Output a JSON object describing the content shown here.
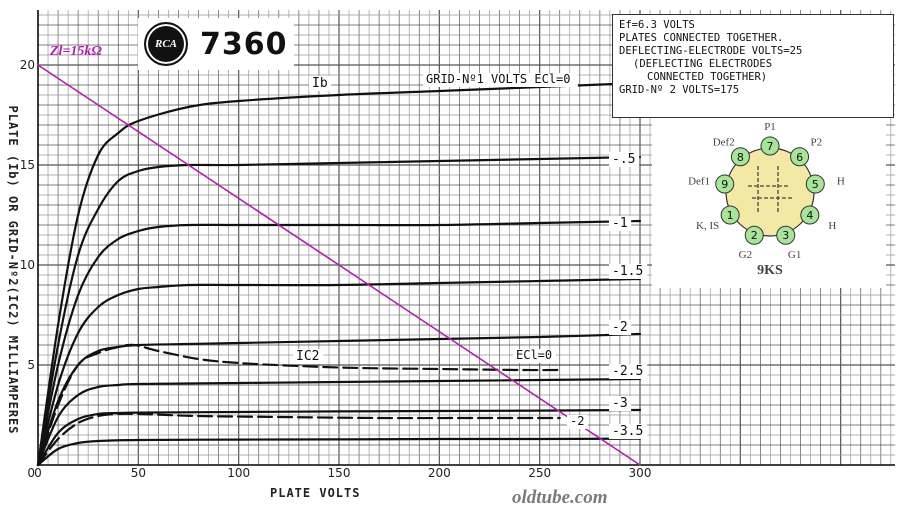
{
  "header": {
    "logo_text": "RCA",
    "tube_type": "7360",
    "load_line_label": "Zl=15kΩ"
  },
  "conditions": {
    "lines": [
      "Ef=6.3 VOLTS",
      "PLATES CONNECTED TOGETHER.",
      "DEFLECTING-ELECTRODE VOLTS=25",
      "(DEFLECTING ELECTRODES",
      "CONNECTED TOGETHER)",
      "GRID-Nº 2 VOLTS=175"
    ]
  },
  "basing": {
    "code": "9KS",
    "pins": [
      {
        "num": "1",
        "label": "K, IS"
      },
      {
        "num": "2",
        "label": "G2"
      },
      {
        "num": "3",
        "label": "G1"
      },
      {
        "num": "4",
        "label": "H"
      },
      {
        "num": "5",
        "label": "H"
      },
      {
        "num": "6",
        "label": "P2"
      },
      {
        "num": "7",
        "label": "P1"
      },
      {
        "num": "8",
        "label": "Def2"
      },
      {
        "num": "9",
        "label": "Def1"
      }
    ],
    "pin_color": "#a8e59a",
    "tube_color": "#f2e9a6"
  },
  "watermark": "oldtube.com",
  "chart_data": {
    "type": "line",
    "xlabel": "PLATE VOLTS",
    "ylabel": "PLATE (Ib) OR GRID-Nº2(IC2) MILLIAMPERES",
    "xlim": [
      0,
      300
    ],
    "ylim": [
      0,
      20
    ],
    "xticks": [
      0,
      50,
      100,
      150,
      200,
      250,
      300
    ],
    "yticks": [
      5,
      10,
      15,
      20
    ],
    "grid": true,
    "legend_title": "GRID-Nº1 VOLTS ECl=0",
    "plate_label": "Ib",
    "screen_label": "IC2",
    "screen_series_label": "ECl=0",
    "series": [
      {
        "name": "0",
        "values": [
          [
            0,
            0
          ],
          [
            10,
            7
          ],
          [
            20,
            12.5
          ],
          [
            30,
            15.5
          ],
          [
            40,
            16.6
          ],
          [
            50,
            17.2
          ],
          [
            75,
            17.9
          ],
          [
            100,
            18.2
          ],
          [
            150,
            18.5
          ],
          [
            200,
            18.7
          ],
          [
            250,
            18.9
          ],
          [
            300,
            19.1
          ]
        ]
      },
      {
        "name": "-.5",
        "values": [
          [
            0,
            0
          ],
          [
            10,
            6
          ],
          [
            20,
            10.5
          ],
          [
            30,
            12.8
          ],
          [
            40,
            14.2
          ],
          [
            50,
            14.7
          ],
          [
            60,
            14.9
          ],
          [
            75,
            15.0
          ],
          [
            100,
            15.0
          ],
          [
            150,
            15.1
          ],
          [
            200,
            15.2
          ],
          [
            250,
            15.3
          ],
          [
            300,
            15.4
          ]
        ]
      },
      {
        "name": "-1",
        "values": [
          [
            0,
            0
          ],
          [
            10,
            5
          ],
          [
            20,
            8.5
          ],
          [
            30,
            10.4
          ],
          [
            40,
            11.3
          ],
          [
            50,
            11.7
          ],
          [
            60,
            11.9
          ],
          [
            75,
            12.0
          ],
          [
            100,
            12.0
          ],
          [
            150,
            12.0
          ],
          [
            200,
            12.0
          ],
          [
            250,
            12.1
          ],
          [
            300,
            12.2
          ]
        ]
      },
      {
        "name": "-1.5",
        "values": [
          [
            0,
            0
          ],
          [
            10,
            4
          ],
          [
            20,
            6.6
          ],
          [
            30,
            7.9
          ],
          [
            40,
            8.5
          ],
          [
            50,
            8.8
          ],
          [
            60,
            8.9
          ],
          [
            75,
            9.0
          ],
          [
            100,
            9.0
          ],
          [
            150,
            9.0
          ],
          [
            200,
            9.1
          ],
          [
            250,
            9.2
          ],
          [
            300,
            9.3
          ]
        ]
      },
      {
        "name": "-2",
        "values": [
          [
            0,
            0
          ],
          [
            10,
            3.2
          ],
          [
            20,
            5.0
          ],
          [
            30,
            5.7
          ],
          [
            40,
            5.9
          ],
          [
            50,
            6.0
          ],
          [
            75,
            6.05
          ],
          [
            100,
            6.1
          ],
          [
            150,
            6.2
          ],
          [
            200,
            6.3
          ],
          [
            250,
            6.4
          ],
          [
            300,
            6.55
          ]
        ]
      },
      {
        "name": "-2.5",
        "values": [
          [
            0,
            0
          ],
          [
            10,
            2.4
          ],
          [
            20,
            3.5
          ],
          [
            30,
            3.9
          ],
          [
            40,
            4.0
          ],
          [
            50,
            4.05
          ],
          [
            100,
            4.1
          ],
          [
            150,
            4.15
          ],
          [
            200,
            4.2
          ],
          [
            250,
            4.25
          ],
          [
            300,
            4.3
          ]
        ]
      },
      {
        "name": "-3",
        "values": [
          [
            0,
            0
          ],
          [
            10,
            1.6
          ],
          [
            20,
            2.3
          ],
          [
            30,
            2.55
          ],
          [
            40,
            2.6
          ],
          [
            50,
            2.62
          ],
          [
            100,
            2.65
          ],
          [
            150,
            2.68
          ],
          [
            200,
            2.7
          ],
          [
            250,
            2.72
          ],
          [
            300,
            2.75
          ]
        ]
      },
      {
        "name": "-3.5",
        "values": [
          [
            0,
            0
          ],
          [
            10,
            0.8
          ],
          [
            20,
            1.1
          ],
          [
            30,
            1.2
          ],
          [
            50,
            1.25
          ],
          [
            100,
            1.27
          ],
          [
            150,
            1.28
          ],
          [
            200,
            1.3
          ],
          [
            250,
            1.3
          ],
          [
            300,
            1.32
          ]
        ]
      },
      {
        "name": "IC2 ECl=0",
        "dashed": true,
        "values": [
          [
            0,
            0
          ],
          [
            10,
            3
          ],
          [
            20,
            5.0
          ],
          [
            30,
            5.6
          ],
          [
            40,
            5.9
          ],
          [
            48,
            6.0
          ],
          [
            60,
            5.7
          ],
          [
            80,
            5.3
          ],
          [
            100,
            5.1
          ],
          [
            130,
            4.95
          ],
          [
            160,
            4.85
          ],
          [
            200,
            4.8
          ],
          [
            240,
            4.75
          ],
          [
            260,
            4.75
          ]
        ]
      },
      {
        "name": "IC2 -2",
        "dashed": true,
        "values": [
          [
            0,
            0
          ],
          [
            10,
            1.3
          ],
          [
            20,
            2.1
          ],
          [
            30,
            2.45
          ],
          [
            40,
            2.55
          ],
          [
            50,
            2.55
          ],
          [
            80,
            2.45
          ],
          [
            120,
            2.4
          ],
          [
            170,
            2.35
          ],
          [
            220,
            2.35
          ],
          [
            260,
            2.35
          ]
        ]
      },
      {
        "name": "Zl=15kΩ",
        "values": [
          [
            0,
            20
          ],
          [
            300,
            0
          ]
        ],
        "color": "#b01fb0"
      }
    ]
  }
}
